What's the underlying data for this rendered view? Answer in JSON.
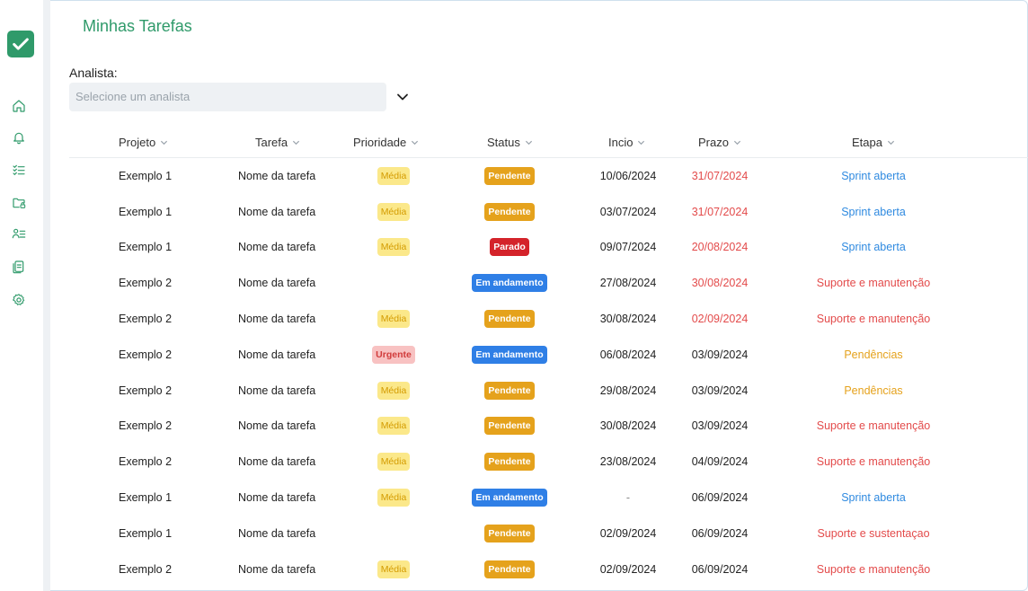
{
  "page": {
    "title": "Minhas Tarefas"
  },
  "filter": {
    "label": "Analista:",
    "placeholder": "Selecione um analista"
  },
  "columns": [
    "Projeto",
    "Tarefa",
    "Prioridade",
    "Status",
    "Incio",
    "Prazo",
    "Etapa"
  ],
  "colors": {
    "brand": "#2f9a6a",
    "overdue": "#e34b4b",
    "etapa_sprint": "#2f8ae0",
    "etapa_suporte": "#e34b4b",
    "etapa_pendencias": "#e5a21c"
  },
  "rows": [
    {
      "projeto": "Exemplo 1",
      "tarefa": "Nome da tarefa",
      "prioridade": "Média",
      "status": "Pendente",
      "inicio": "10/06/2024",
      "prazo": "31/07/2024",
      "prazo_overdue": true,
      "etapa": "Sprint aberta",
      "etapa_kind": "sprint"
    },
    {
      "projeto": "Exemplo 1",
      "tarefa": "Nome da tarefa",
      "prioridade": "Média",
      "status": "Pendente",
      "inicio": "03/07/2024",
      "prazo": "31/07/2024",
      "prazo_overdue": true,
      "etapa": "Sprint aberta",
      "etapa_kind": "sprint"
    },
    {
      "projeto": "Exemplo 1",
      "tarefa": "Nome da tarefa",
      "prioridade": "Média",
      "status": "Parado",
      "inicio": "09/07/2024",
      "prazo": "20/08/2024",
      "prazo_overdue": true,
      "etapa": "Sprint aberta",
      "etapa_kind": "sprint"
    },
    {
      "projeto": "Exemplo 2",
      "tarefa": "Nome da tarefa",
      "prioridade": "",
      "status": "Em andamento",
      "inicio": "27/08/2024",
      "prazo": "30/08/2024",
      "prazo_overdue": true,
      "etapa": "Suporte e manutenção",
      "etapa_kind": "suporte"
    },
    {
      "projeto": "Exemplo 2",
      "tarefa": "Nome da tarefa",
      "prioridade": "Média",
      "status": "Pendente",
      "inicio": "30/08/2024",
      "prazo": "02/09/2024",
      "prazo_overdue": true,
      "etapa": "Suporte e manutenção",
      "etapa_kind": "suporte"
    },
    {
      "projeto": "Exemplo 2",
      "tarefa": "Nome da tarefa",
      "prioridade": "Urgente",
      "status": "Em andamento",
      "inicio": "06/08/2024",
      "prazo": "03/09/2024",
      "prazo_overdue": false,
      "etapa": "Pendências",
      "etapa_kind": "pendencias"
    },
    {
      "projeto": "Exemplo 2",
      "tarefa": "Nome da tarefa",
      "prioridade": "Média",
      "status": "Pendente",
      "inicio": "29/08/2024",
      "prazo": "03/09/2024",
      "prazo_overdue": false,
      "etapa": "Pendências",
      "etapa_kind": "pendencias"
    },
    {
      "projeto": "Exemplo 2",
      "tarefa": "Nome da tarefa",
      "prioridade": "Média",
      "status": "Pendente",
      "inicio": "30/08/2024",
      "prazo": "03/09/2024",
      "prazo_overdue": false,
      "etapa": "Suporte e manutenção",
      "etapa_kind": "suporte"
    },
    {
      "projeto": "Exemplo 2",
      "tarefa": "Nome da tarefa",
      "prioridade": "Média",
      "status": "Pendente",
      "inicio": "23/08/2024",
      "prazo": "04/09/2024",
      "prazo_overdue": false,
      "etapa": "Suporte e manutenção",
      "etapa_kind": "suporte"
    },
    {
      "projeto": "Exemplo 1",
      "tarefa": "Nome da tarefa",
      "prioridade": "Média",
      "status": "Em andamento",
      "inicio": "-",
      "prazo": "06/09/2024",
      "prazo_overdue": false,
      "etapa": "Sprint aberta",
      "etapa_kind": "sprint"
    },
    {
      "projeto": "Exemplo 1",
      "tarefa": "Nome da tarefa",
      "prioridade": "",
      "status": "Pendente",
      "inicio": "02/09/2024",
      "prazo": "06/09/2024",
      "prazo_overdue": false,
      "etapa": "Suporte e sustentaçao",
      "etapa_kind": "suporte"
    },
    {
      "projeto": "Exemplo 2",
      "tarefa": "Nome da tarefa",
      "prioridade": "Média",
      "status": "Pendente",
      "inicio": "02/09/2024",
      "prazo": "06/09/2024",
      "prazo_overdue": false,
      "etapa": "Suporte e manutenção",
      "etapa_kind": "suporte"
    }
  ]
}
